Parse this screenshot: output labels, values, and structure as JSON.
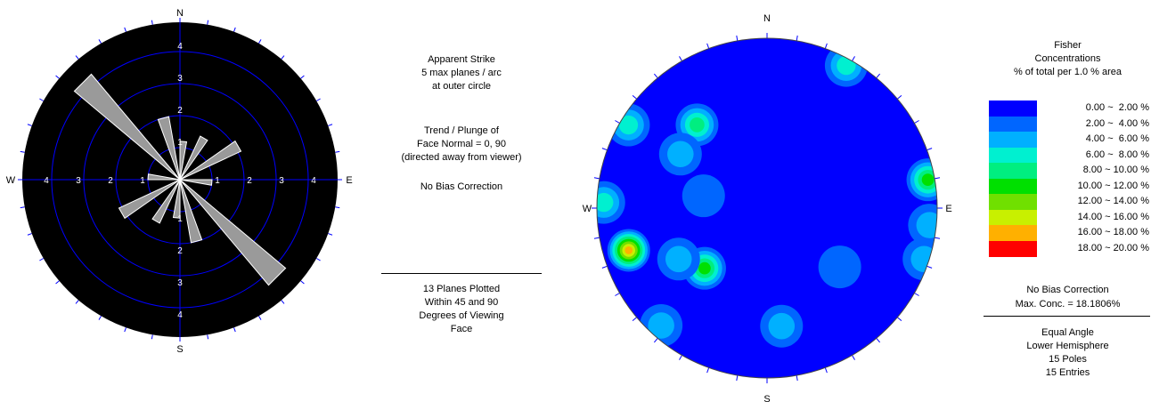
{
  "rose": {
    "compass": {
      "n": "N",
      "e": "E",
      "s": "S",
      "w": "W"
    },
    "ring_labels": [
      "1",
      "2",
      "3",
      "4"
    ],
    "petals": [
      {
        "azimuth": 135,
        "length": 4.3
      },
      {
        "azimuth": 315,
        "length": 4.3
      },
      {
        "azimuth": 60,
        "length": 2.1
      },
      {
        "azimuth": 240,
        "length": 2.1
      },
      {
        "azimuth": 30,
        "length": 1.5
      },
      {
        "azimuth": 210,
        "length": 1.5
      },
      {
        "azimuth": 165,
        "length": 2.0
      },
      {
        "azimuth": 345,
        "length": 2.0
      },
      {
        "azimuth": 5,
        "length": 1.2
      },
      {
        "azimuth": 185,
        "length": 1.2
      },
      {
        "azimuth": 95,
        "length": 1.0
      },
      {
        "azimuth": 275,
        "length": 1.0
      }
    ]
  },
  "rose_info": {
    "line1": "Apparent Strike",
    "line2": "5 max planes / arc",
    "line3": "at outer circle",
    "trend_line1": "Trend / Plunge of",
    "trend_line2": "Face Normal =  0, 90",
    "trend_line3": "(directed away from viewer)",
    "bias": "No Bias Correction",
    "planes_line1": "13 Planes Plotted",
    "planes_line2": "Within 45 and 90",
    "planes_line3": "Degrees of Viewing",
    "planes_line4": "Face"
  },
  "stereonet": {
    "compass": {
      "n": "N",
      "e": "E",
      "s": "S",
      "w": "W"
    },
    "background_color": "#0000ff",
    "contour_colors": [
      "#0000ff",
      "#0066ff",
      "#00b0ff",
      "#00f0d0",
      "#00ee80",
      "#00e000",
      "#70e000",
      "#c8f000",
      "#ffb000",
      "#ff0000"
    ],
    "clusters": [
      {
        "az": 29,
        "r": 0.96,
        "peak": 3
      },
      {
        "az": 320,
        "r": 0.64,
        "peak": 4
      },
      {
        "az": 302,
        "r": 0.6,
        "peak": 2
      },
      {
        "az": 301,
        "r": 0.95,
        "peak": 3
      },
      {
        "az": 281,
        "r": 0.38,
        "peak": 1
      },
      {
        "az": 272,
        "r": 0.96,
        "peak": 3
      },
      {
        "az": 80,
        "r": 0.96,
        "peak": 5
      },
      {
        "az": 96,
        "r": 0.96,
        "peak": 2
      },
      {
        "az": 253,
        "r": 0.85,
        "peak": 8
      },
      {
        "az": 226,
        "r": 0.51,
        "peak": 5
      },
      {
        "az": 240,
        "r": 0.6,
        "peak": 2
      },
      {
        "az": 129,
        "r": 0.55,
        "peak": 1
      },
      {
        "az": 108,
        "r": 0.97,
        "peak": 2
      },
      {
        "az": 173,
        "r": 0.7,
        "peak": 2
      },
      {
        "az": 222,
        "r": 0.93,
        "peak": 2
      }
    ]
  },
  "legend": {
    "title1": "Fisher",
    "title2": "Concentrations",
    "title3": "% of total per 1.0 % area",
    "ranges": [
      {
        "label": "0.00 ~  2.00 %",
        "color": "#0000ff"
      },
      {
        "label": "2.00 ~  4.00 %",
        "color": "#0066ff"
      },
      {
        "label": "4.00 ~  6.00 %",
        "color": "#00b0ff"
      },
      {
        "label": "6.00 ~  8.00 %",
        "color": "#00f0d0"
      },
      {
        "label": "8.00 ~ 10.00 %",
        "color": "#00ee80"
      },
      {
        "label": "10.00 ~ 12.00 %",
        "color": "#00e000"
      },
      {
        "label": "12.00 ~ 14.00 %",
        "color": "#70e000"
      },
      {
        "label": "14.00 ~ 16.00 %",
        "color": "#c8f000"
      },
      {
        "label": "16.00 ~ 18.00 %",
        "color": "#ffb000"
      },
      {
        "label": "18.00 ~ 20.00 %",
        "color": "#ff0000"
      }
    ]
  },
  "stereonet_info": {
    "bias": "No Bias Correction",
    "max_conc": "Max. Conc. = 18.1806%",
    "projection": "Equal Angle",
    "hemisphere": "Lower Hemisphere",
    "poles": "15 Poles",
    "entries": "15 Entries"
  }
}
